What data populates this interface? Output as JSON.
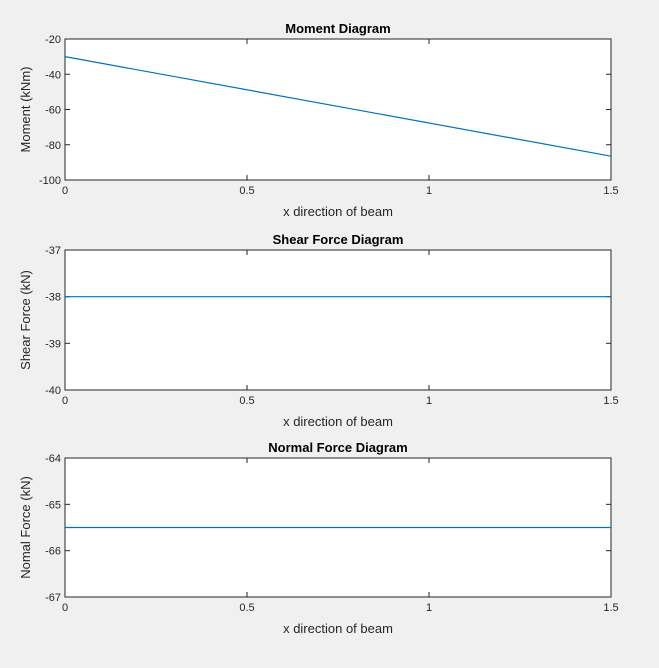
{
  "chart_data": [
    {
      "type": "line",
      "title": "Moment Diagram",
      "xlabel": "x direction of beam",
      "ylabel": "Moment (kNm)",
      "xlim": [
        0,
        1.5
      ],
      "ylim": [
        -100,
        -20
      ],
      "xticks": [
        "0",
        "0.5",
        "1",
        "1.5"
      ],
      "yticks": [
        "-20",
        "-40",
        "-60",
        "-80",
        "-100"
      ],
      "grid": false,
      "series": [
        {
          "x": [
            0,
            1.5
          ],
          "y": [
            -30,
            -86.5
          ],
          "color": "#0072bd"
        }
      ]
    },
    {
      "type": "line",
      "title": "Shear Force Diagram",
      "xlabel": "x direction of beam",
      "ylabel": "Shear Force (kN)",
      "xlim": [
        0,
        1.5
      ],
      "ylim": [
        -40,
        -37
      ],
      "xticks": [
        "0",
        "0.5",
        "1",
        "1.5"
      ],
      "yticks": [
        "-37",
        "-38",
        "-39",
        "-40"
      ],
      "grid": false,
      "series": [
        {
          "x": [
            0,
            1.5
          ],
          "y": [
            -38,
            -38
          ],
          "color": "#0072bd"
        }
      ]
    },
    {
      "type": "line",
      "title": "Normal Force Diagram",
      "xlabel": "x direction of beam",
      "ylabel": "Nomal Force (kN)",
      "xlim": [
        0,
        1.5
      ],
      "ylim": [
        -67,
        -64
      ],
      "xticks": [
        "0",
        "0.5",
        "1",
        "1.5"
      ],
      "yticks": [
        "-64",
        "-65",
        "-66",
        "-67"
      ],
      "grid": false,
      "series": [
        {
          "x": [
            0,
            1.5
          ],
          "y": [
            -65.5,
            -65.5
          ],
          "color": "#0072bd"
        }
      ]
    }
  ]
}
